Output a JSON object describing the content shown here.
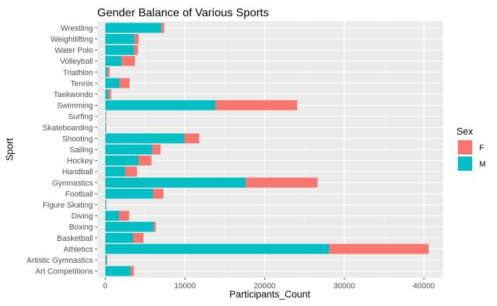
{
  "chart_data": {
    "type": "bar",
    "orientation": "horizontal",
    "stacked": true,
    "title": "Gender Balance of Various Sports",
    "xlabel": "Participants_Count",
    "ylabel": "Sport",
    "xlim": [
      0,
      42000
    ],
    "xticks": [
      0,
      10000,
      20000,
      30000,
      40000
    ],
    "xtick_labels": [
      "0",
      "10000",
      "20000",
      "30000",
      "40000"
    ],
    "categories": [
      "Art Competitions",
      "Artistic Gymnastics",
      "Athletics",
      "Basketball",
      "Boxing",
      "Diving",
      "Figure Skating",
      "Football",
      "Gymnastics",
      "Handball",
      "Hockey",
      "Sailing",
      "Shooting",
      "Skateboarding",
      "Surfing",
      "Swimming",
      "Taekwondo",
      "Tennis",
      "Triathlon",
      "Volleyball",
      "Water Polo",
      "Weightlifting",
      "Wrestling"
    ],
    "series": [
      {
        "name": "M",
        "color": "#00BFC4",
        "values": [
          3200,
          150,
          28100,
          3500,
          6100,
          1750,
          100,
          6000,
          17650,
          2500,
          4200,
          5900,
          9950,
          70,
          50,
          13850,
          400,
          1800,
          250,
          2050,
          3600,
          3700,
          7050
        ]
      },
      {
        "name": "F",
        "color": "#F8766D",
        "values": [
          400,
          100,
          12500,
          1300,
          250,
          1250,
          50,
          1300,
          9000,
          1500,
          1600,
          1050,
          1850,
          60,
          80,
          10250,
          350,
          1250,
          300,
          1700,
          500,
          500,
          350
        ]
      }
    ],
    "legend": {
      "title": "Sex",
      "position": "right",
      "items": [
        {
          "label": "F",
          "color": "#F8766D"
        },
        {
          "label": "M",
          "color": "#00BFC4"
        }
      ]
    },
    "grid": true
  }
}
